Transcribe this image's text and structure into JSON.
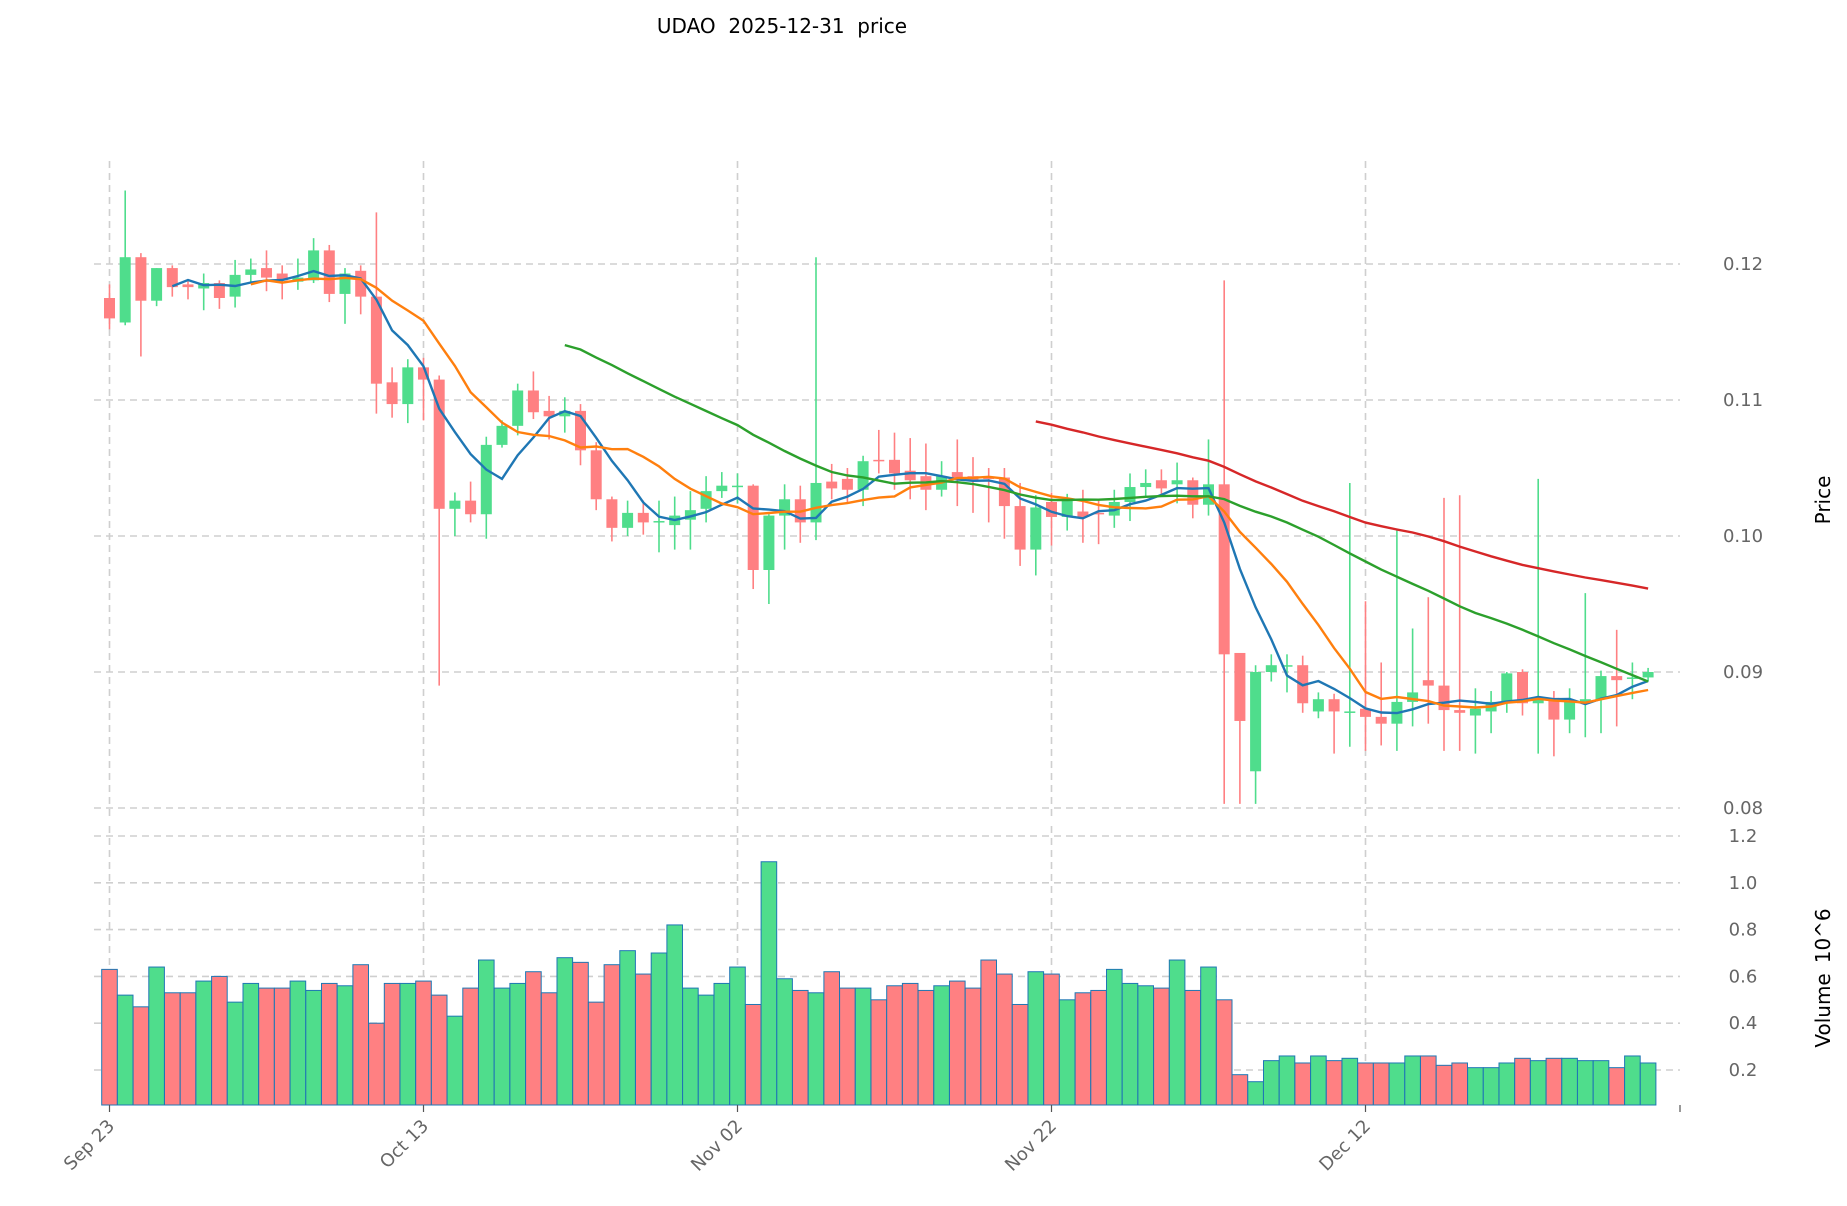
{
  "chart_data": {
    "type": "candlestick",
    "title": "UDAO  2025-12-31  price",
    "start_date": "2025-09-23",
    "ylabel_price": "Price",
    "ylabel_volume": "Volume",
    "volume_unit": "10^6",
    "volume_unit_base": "10",
    "volume_unit_exp": "6",
    "price_ylim": [
      0.0775,
      0.128
    ],
    "price_ticks": [
      "0.08",
      "0.09",
      "0.10",
      "0.11",
      "0.12"
    ],
    "volume_ylim": [
      0.05,
      1.2
    ],
    "volume_ticks": [
      "0.2",
      "0.4",
      "0.6",
      "0.8",
      "1.0",
      "1.2"
    ],
    "x_ticks": [
      {
        "label": "Sep 23",
        "day": 0
      },
      {
        "label": "Oct 13",
        "day": 20
      },
      {
        "label": "Nov 02",
        "day": 40
      },
      {
        "label": "Nov 22",
        "day": 60
      },
      {
        "label": "Dec 12",
        "day": 80
      }
    ],
    "moving_averages": [
      {
        "window": 5,
        "color": "#1f77b4"
      },
      {
        "window": 10,
        "color": "#ff7f0e"
      },
      {
        "window": 30,
        "color": "#2ca02c"
      },
      {
        "window": 60,
        "color": "#d62728"
      }
    ],
    "up_color": "#4fdd8c",
    "down_color": "#ff8082",
    "volume_edge_color": "#1f77b4",
    "ohlc": [
      [
        0.1175,
        0.1185,
        0.1152,
        0.116
      ],
      [
        0.1157,
        0.1254,
        0.1155,
        0.1205
      ],
      [
        0.1205,
        0.1208,
        0.1132,
        0.1173
      ],
      [
        0.1173,
        0.1197,
        0.1169,
        0.1197
      ],
      [
        0.1197,
        0.1199,
        0.1176,
        0.1183
      ],
      [
        0.1185,
        0.1188,
        0.1174,
        0.1183
      ],
      [
        0.1182,
        0.1193,
        0.1166,
        0.1186
      ],
      [
        0.1186,
        0.1188,
        0.1167,
        0.1175
      ],
      [
        0.1176,
        0.1203,
        0.1168,
        0.1192
      ],
      [
        0.1192,
        0.1204,
        0.1186,
        0.1196
      ],
      [
        0.1197,
        0.121,
        0.118,
        0.119
      ],
      [
        0.1193,
        0.1199,
        0.1174,
        0.1188
      ],
      [
        0.1187,
        0.1204,
        0.1181,
        0.119
      ],
      [
        0.1188,
        0.1219,
        0.1186,
        0.121
      ],
      [
        0.121,
        0.1214,
        0.1172,
        0.1178
      ],
      [
        0.1178,
        0.1197,
        0.1156,
        0.1193
      ],
      [
        0.1195,
        0.1199,
        0.1163,
        0.1176
      ],
      [
        0.1176,
        0.1238,
        0.109,
        0.1112
      ],
      [
        0.1113,
        0.1124,
        0.1087,
        0.1097
      ],
      [
        0.1097,
        0.113,
        0.1083,
        0.1124
      ],
      [
        0.1124,
        0.1131,
        0.1085,
        0.1115
      ],
      [
        0.1115,
        0.1118,
        0.089,
        0.102
      ],
      [
        0.102,
        0.1032,
        0.1,
        0.1026
      ],
      [
        0.1026,
        0.104,
        0.101,
        0.1016
      ],
      [
        0.1016,
        0.1073,
        0.0998,
        0.1067
      ],
      [
        0.1067,
        0.1085,
        0.1065,
        0.1081
      ],
      [
        0.1081,
        0.1112,
        0.1074,
        0.1107
      ],
      [
        0.1107,
        0.1121,
        0.1086,
        0.1091
      ],
      [
        0.1092,
        0.1103,
        0.1071,
        0.1088
      ],
      [
        0.1088,
        0.1102,
        0.1076,
        0.1092
      ],
      [
        0.1092,
        0.1097,
        0.1052,
        0.1063
      ],
      [
        0.1063,
        0.1069,
        0.1019,
        0.1027
      ],
      [
        0.1027,
        0.1029,
        0.0996,
        0.1006
      ],
      [
        0.1006,
        0.1026,
        0.1,
        0.1017
      ],
      [
        0.1017,
        0.1026,
        0.1001,
        0.101
      ],
      [
        0.101,
        0.1026,
        0.0988,
        0.1011
      ],
      [
        0.1008,
        0.1029,
        0.099,
        0.1015
      ],
      [
        0.1012,
        0.1033,
        0.099,
        0.1019
      ],
      [
        0.102,
        0.1044,
        0.101,
        0.1033
      ],
      [
        0.1033,
        0.1047,
        0.1028,
        0.1037
      ],
      [
        0.1036,
        0.1046,
        0.1024,
        0.1037
      ],
      [
        0.1037,
        0.1038,
        0.0961,
        0.0975
      ],
      [
        0.0975,
        0.1016,
        0.095,
        0.1015
      ],
      [
        0.1015,
        0.1038,
        0.099,
        0.1027
      ],
      [
        0.1027,
        0.1037,
        0.0995,
        0.101
      ],
      [
        0.101,
        0.1205,
        0.0997,
        0.1039
      ],
      [
        0.104,
        0.1053,
        0.1027,
        0.1035
      ],
      [
        0.1042,
        0.105,
        0.1025,
        0.1034
      ],
      [
        0.1034,
        0.1059,
        0.1022,
        0.1055
      ],
      [
        0.1056,
        0.1078,
        0.1046,
        0.1055
      ],
      [
        0.1056,
        0.1076,
        0.1034,
        0.1046
      ],
      [
        0.1048,
        0.1072,
        0.1027,
        0.1041
      ],
      [
        0.1044,
        0.1068,
        0.1019,
        0.1034
      ],
      [
        0.1034,
        0.1055,
        0.1029,
        0.1044
      ],
      [
        0.1047,
        0.1071,
        0.1022,
        0.1043
      ],
      [
        0.1044,
        0.1058,
        0.1017,
        0.1041
      ],
      [
        0.1043,
        0.105,
        0.101,
        0.1042
      ],
      [
        0.1043,
        0.105,
        0.0998,
        0.1022
      ],
      [
        0.1022,
        0.1039,
        0.0978,
        0.099
      ],
      [
        0.099,
        0.103,
        0.0971,
        0.1021
      ],
      [
        0.1025,
        0.1032,
        0.0993,
        0.1014
      ],
      [
        0.1014,
        0.1031,
        0.1004,
        0.1026
      ],
      [
        0.1018,
        0.1034,
        0.0995,
        0.1014
      ],
      [
        0.1017,
        0.1026,
        0.0994,
        0.1016
      ],
      [
        0.1015,
        0.1034,
        0.1006,
        0.1025
      ],
      [
        0.1025,
        0.1046,
        0.1011,
        0.1036
      ],
      [
        0.1036,
        0.1049,
        0.1028,
        0.1039
      ],
      [
        0.1041,
        0.1049,
        0.103,
        0.1035
      ],
      [
        0.1038,
        0.1054,
        0.1024,
        0.1041
      ],
      [
        0.1041,
        0.1043,
        0.1013,
        0.1023
      ],
      [
        0.1023,
        0.1071,
        0.1015,
        0.1038
      ],
      [
        0.1038,
        0.1188,
        0.0803,
        0.0913
      ],
      [
        0.0914,
        0.0914,
        0.0803,
        0.0864
      ],
      [
        0.0827,
        0.0905,
        0.0803,
        0.09
      ],
      [
        0.09,
        0.0913,
        0.0893,
        0.0905
      ],
      [
        0.0904,
        0.0913,
        0.0885,
        0.0905
      ],
      [
        0.0905,
        0.0912,
        0.087,
        0.0877
      ],
      [
        0.0871,
        0.0885,
        0.0866,
        0.088
      ],
      [
        0.088,
        0.0884,
        0.084,
        0.0871
      ],
      [
        0.087,
        0.1039,
        0.0845,
        0.0871
      ],
      [
        0.0873,
        0.0952,
        0.0842,
        0.0867
      ],
      [
        0.0867,
        0.0907,
        0.0846,
        0.0862
      ],
      [
        0.0862,
        0.1004,
        0.0842,
        0.0878
      ],
      [
        0.0878,
        0.0932,
        0.086,
        0.0885
      ],
      [
        0.0894,
        0.0955,
        0.0862,
        0.089
      ],
      [
        0.089,
        0.1028,
        0.0842,
        0.0872
      ],
      [
        0.0872,
        0.103,
        0.0842,
        0.087
      ],
      [
        0.0868,
        0.0888,
        0.084,
        0.0873
      ],
      [
        0.0871,
        0.0886,
        0.0855,
        0.0878
      ],
      [
        0.0877,
        0.09,
        0.087,
        0.0899
      ],
      [
        0.09,
        0.0902,
        0.0868,
        0.0877
      ],
      [
        0.0877,
        0.1042,
        0.084,
        0.0881
      ],
      [
        0.0881,
        0.0886,
        0.0838,
        0.0865
      ],
      [
        0.0865,
        0.0888,
        0.0855,
        0.0879
      ],
      [
        0.0878,
        0.0958,
        0.0852,
        0.088
      ],
      [
        0.088,
        0.0901,
        0.0855,
        0.0897
      ],
      [
        0.0897,
        0.0931,
        0.086,
        0.0894
      ],
      [
        0.0895,
        0.0907,
        0.088,
        0.0896
      ],
      [
        0.0896,
        0.0903,
        0.0893,
        0.09
      ]
    ],
    "volume": [
      0.63,
      0.52,
      0.47,
      0.64,
      0.53,
      0.53,
      0.58,
      0.6,
      0.49,
      0.57,
      0.55,
      0.55,
      0.58,
      0.54,
      0.57,
      0.56,
      0.65,
      0.4,
      0.57,
      0.57,
      0.58,
      0.52,
      0.43,
      0.55,
      0.67,
      0.55,
      0.57,
      0.62,
      0.53,
      0.68,
      0.66,
      0.49,
      0.65,
      0.71,
      0.61,
      0.7,
      0.82,
      0.55,
      0.52,
      0.57,
      0.64,
      0.48,
      1.09,
      0.59,
      0.54,
      0.53,
      0.62,
      0.55,
      0.55,
      0.5,
      0.56,
      0.57,
      0.54,
      0.56,
      0.58,
      0.55,
      0.67,
      0.61,
      0.48,
      0.62,
      0.61,
      0.5,
      0.53,
      0.54,
      0.63,
      0.57,
      0.56,
      0.55,
      0.67,
      0.54,
      0.64,
      0.5,
      0.18,
      0.15,
      0.24,
      0.26,
      0.23,
      0.26,
      0.24,
      0.25,
      0.23,
      0.23,
      0.23,
      0.26,
      0.26,
      0.22,
      0.23,
      0.21,
      0.21,
      0.23,
      0.25,
      0.24,
      0.25,
      0.25,
      0.24,
      0.24,
      0.21,
      0.26,
      0.23
    ]
  }
}
